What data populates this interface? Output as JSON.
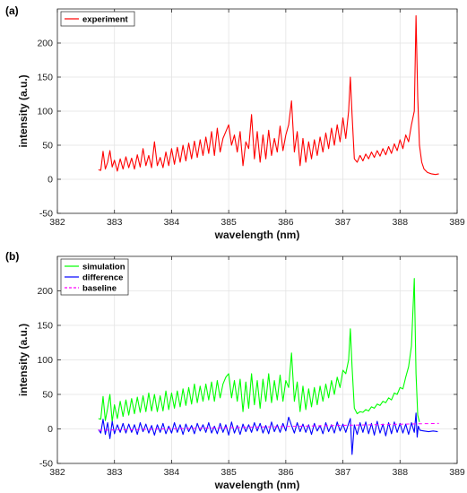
{
  "chart_data": [
    {
      "type": "line",
      "panel_label": "(a)",
      "xlabel": "wavelength (nm)",
      "ylabel": "intensity (a.u.)",
      "xlim": [
        382,
        389
      ],
      "ylim": [
        -50,
        250
      ],
      "xticks": [
        382,
        383,
        384,
        385,
        386,
        387,
        388,
        389
      ],
      "yticks": [
        -50,
        0,
        50,
        100,
        150,
        200
      ],
      "grid": true,
      "legend_position": "top-left",
      "series": [
        {
          "name": "experiment",
          "color": "#ff0000",
          "x": [
            382.72,
            382.76,
            382.8,
            382.84,
            382.88,
            382.92,
            382.96,
            383.0,
            383.05,
            383.1,
            383.15,
            383.2,
            383.25,
            383.3,
            383.35,
            383.4,
            383.45,
            383.5,
            383.55,
            383.6,
            383.65,
            383.7,
            383.75,
            383.8,
            383.85,
            383.9,
            383.95,
            384.0,
            384.05,
            384.1,
            384.15,
            384.2,
            384.25,
            384.3,
            384.35,
            384.4,
            384.45,
            384.5,
            384.55,
            384.6,
            384.65,
            384.7,
            384.75,
            384.8,
            384.85,
            384.9,
            384.95,
            385.0,
            385.05,
            385.1,
            385.15,
            385.2,
            385.25,
            385.3,
            385.35,
            385.4,
            385.45,
            385.5,
            385.55,
            385.6,
            385.65,
            385.7,
            385.75,
            385.8,
            385.85,
            385.9,
            385.95,
            386.0,
            386.05,
            386.1,
            386.15,
            386.2,
            386.25,
            386.3,
            386.35,
            386.4,
            386.45,
            386.5,
            386.55,
            386.6,
            386.65,
            386.7,
            386.75,
            386.8,
            386.85,
            386.9,
            386.95,
            387.0,
            387.05,
            387.1,
            387.13,
            387.16,
            387.2,
            387.25,
            387.3,
            387.35,
            387.4,
            387.45,
            387.5,
            387.55,
            387.6,
            387.65,
            387.7,
            387.75,
            387.8,
            387.85,
            387.9,
            387.95,
            388.0,
            388.05,
            388.1,
            388.15,
            388.2,
            388.25,
            388.28,
            388.31,
            388.34,
            388.38,
            388.42,
            388.48,
            388.55,
            388.62,
            388.68
          ],
          "y": [
            14,
            13,
            41,
            15,
            25,
            42,
            18,
            28,
            12,
            30,
            15,
            33,
            17,
            31,
            15,
            36,
            18,
            45,
            20,
            35,
            17,
            55,
            20,
            32,
            17,
            40,
            20,
            45,
            22,
            47,
            25,
            50,
            27,
            53,
            30,
            56,
            32,
            58,
            35,
            62,
            38,
            70,
            35,
            75,
            40,
            60,
            70,
            80,
            50,
            65,
            40,
            70,
            20,
            55,
            45,
            95,
            30,
            70,
            25,
            65,
            30,
            72,
            35,
            60,
            40,
            78,
            42,
            65,
            80,
            115,
            40,
            70,
            20,
            60,
            25,
            55,
            30,
            58,
            35,
            62,
            40,
            68,
            45,
            75,
            50,
            80,
            55,
            90,
            60,
            100,
            150,
            95,
            30,
            25,
            35,
            27,
            37,
            30,
            40,
            32,
            42,
            34,
            45,
            36,
            48,
            38,
            52,
            42,
            58,
            45,
            65,
            55,
            80,
            100,
            240,
            120,
            50,
            25,
            15,
            10,
            8,
            7,
            8
          ]
        }
      ]
    },
    {
      "type": "line",
      "panel_label": "(b)",
      "xlabel": "wavelength (nm)",
      "ylabel": "intensity (a.u.)",
      "xlim": [
        382,
        389
      ],
      "ylim": [
        -50,
        250
      ],
      "xticks": [
        382,
        383,
        384,
        385,
        386,
        387,
        388,
        389
      ],
      "yticks": [
        -50,
        0,
        50,
        100,
        150,
        200
      ],
      "grid": true,
      "legend_position": "top-left",
      "series": [
        {
          "name": "simulation",
          "color": "#00ff00",
          "x": [
            382.72,
            382.76,
            382.8,
            382.84,
            382.88,
            382.92,
            382.96,
            383.0,
            383.05,
            383.1,
            383.15,
            383.2,
            383.25,
            383.3,
            383.35,
            383.4,
            383.45,
            383.5,
            383.55,
            383.6,
            383.65,
            383.7,
            383.75,
            383.8,
            383.85,
            383.9,
            383.95,
            384.0,
            384.05,
            384.1,
            384.15,
            384.2,
            384.25,
            384.3,
            384.35,
            384.4,
            384.45,
            384.5,
            384.55,
            384.6,
            384.65,
            384.7,
            384.75,
            384.8,
            384.85,
            384.9,
            384.95,
            385.0,
            385.05,
            385.1,
            385.15,
            385.2,
            385.25,
            385.3,
            385.35,
            385.4,
            385.45,
            385.5,
            385.55,
            385.6,
            385.65,
            385.7,
            385.75,
            385.8,
            385.85,
            385.9,
            385.95,
            386.0,
            386.05,
            386.1,
            386.15,
            386.2,
            386.25,
            386.3,
            386.35,
            386.4,
            386.45,
            386.5,
            386.55,
            386.6,
            386.65,
            386.7,
            386.75,
            386.8,
            386.85,
            386.9,
            386.95,
            387.0,
            387.05,
            387.1,
            387.13,
            387.16,
            387.2,
            387.25,
            387.3,
            387.35,
            387.4,
            387.45,
            387.5,
            387.55,
            387.6,
            387.65,
            387.7,
            387.75,
            387.8,
            387.85,
            387.9,
            387.95,
            388.0,
            388.05,
            388.1,
            388.15,
            388.2,
            388.25,
            388.28,
            388.31,
            388.34
          ],
          "y": [
            15,
            14,
            47,
            12,
            30,
            50,
            10,
            35,
            15,
            40,
            18,
            42,
            20,
            44,
            22,
            46,
            24,
            48,
            25,
            52,
            26,
            50,
            25,
            48,
            26,
            55,
            28,
            52,
            30,
            55,
            32,
            58,
            34,
            60,
            36,
            65,
            38,
            62,
            40,
            65,
            42,
            68,
            40,
            70,
            45,
            65,
            75,
            80,
            45,
            70,
            40,
            72,
            25,
            68,
            30,
            80,
            35,
            70,
            30,
            72,
            40,
            80,
            38,
            70,
            42,
            78,
            40,
            70,
            60,
            110,
            40,
            68,
            25,
            62,
            28,
            58,
            32,
            60,
            35,
            62,
            40,
            65,
            45,
            70,
            50,
            75,
            60,
            85,
            80,
            100,
            145,
            90,
            30,
            22,
            25,
            24,
            28,
            26,
            32,
            30,
            36,
            34,
            40,
            38,
            45,
            42,
            52,
            50,
            60,
            58,
            75,
            90,
            120,
            218,
            80,
            20,
            10
          ]
        },
        {
          "name": "difference",
          "color": "#0000ff",
          "x": [
            382.72,
            382.76,
            382.8,
            382.84,
            382.88,
            382.92,
            382.96,
            383.0,
            383.05,
            383.1,
            383.15,
            383.2,
            383.25,
            383.3,
            383.35,
            383.4,
            383.45,
            383.5,
            383.55,
            383.6,
            383.65,
            383.7,
            383.75,
            383.8,
            383.85,
            383.9,
            383.95,
            384.0,
            384.05,
            384.1,
            384.15,
            384.2,
            384.25,
            384.3,
            384.35,
            384.4,
            384.45,
            384.5,
            384.55,
            384.6,
            384.65,
            384.7,
            384.75,
            384.8,
            384.85,
            384.9,
            384.95,
            385.0,
            385.05,
            385.1,
            385.15,
            385.2,
            385.25,
            385.3,
            385.35,
            385.4,
            385.45,
            385.5,
            385.55,
            385.6,
            385.65,
            385.7,
            385.75,
            385.8,
            385.85,
            385.9,
            385.95,
            386.0,
            386.05,
            386.1,
            386.15,
            386.2,
            386.25,
            386.3,
            386.35,
            386.4,
            386.45,
            386.5,
            386.55,
            386.6,
            386.65,
            386.7,
            386.75,
            386.8,
            386.85,
            386.9,
            386.95,
            387.0,
            387.05,
            387.1,
            387.13,
            387.16,
            387.2,
            387.25,
            387.3,
            387.35,
            387.4,
            387.45,
            387.5,
            387.55,
            387.6,
            387.65,
            387.7,
            387.75,
            387.8,
            387.85,
            387.9,
            387.95,
            388.0,
            388.05,
            388.1,
            388.15,
            388.2,
            388.25,
            388.28,
            388.3,
            388.32,
            388.35,
            388.42,
            388.5,
            388.58,
            388.66
          ],
          "y": [
            -1,
            -6,
            14,
            -8,
            9,
            -14,
            11,
            -7,
            6,
            -5,
            8,
            -6,
            7,
            -5,
            6,
            -8,
            9,
            -4,
            7,
            -6,
            5,
            -9,
            6,
            -5,
            8,
            -7,
            4,
            -6,
            9,
            -5,
            6,
            -8,
            7,
            -4,
            5,
            -7,
            8,
            -3,
            6,
            -5,
            9,
            -6,
            4,
            -7,
            8,
            -5,
            6,
            -9,
            10,
            -6,
            5,
            -8,
            7,
            -4,
            6,
            -5,
            9,
            -3,
            8,
            -6,
            5,
            -7,
            10,
            -4,
            6,
            -5,
            8,
            -3,
            17,
            5,
            -6,
            9,
            -4,
            7,
            -5,
            6,
            -8,
            8,
            -3,
            5,
            -7,
            9,
            -4,
            6,
            -6,
            10,
            -3,
            7,
            -5,
            8,
            15,
            -37,
            6,
            -8,
            9,
            -5,
            10,
            -7,
            8,
            -9,
            11,
            -6,
            7,
            -10,
            9,
            -7,
            10,
            -5,
            8,
            -6,
            7,
            -8,
            9,
            -5,
            23,
            -12,
            4,
            -2,
            -3,
            -4,
            -3,
            -4
          ]
        },
        {
          "name": "baseline",
          "color": "#ff00ff",
          "dashed": true,
          "x": [
            382.72,
            388.68
          ],
          "y": [
            -2,
            8
          ]
        }
      ]
    }
  ]
}
